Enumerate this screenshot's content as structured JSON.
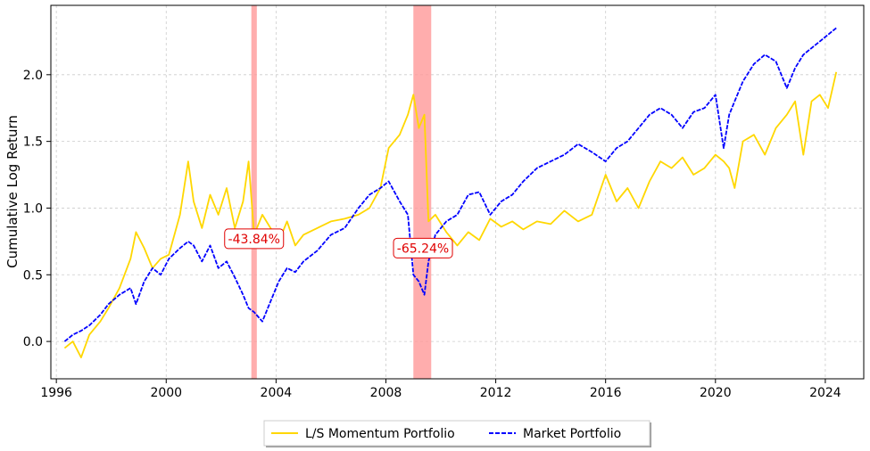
{
  "chart_data": {
    "type": "line",
    "title": "",
    "xlabel": "",
    "ylabel": "Cumulative Log Return",
    "xlim": [
      1995.8,
      2025.4
    ],
    "ylim": [
      -0.28,
      2.52
    ],
    "x_ticks": [
      1996,
      2000,
      2004,
      2008,
      2012,
      2016,
      2020,
      2024
    ],
    "x_tick_labels": [
      "1996",
      "2000",
      "2004",
      "2008",
      "2012",
      "2016",
      "2020",
      "2024"
    ],
    "y_ticks": [
      0.0,
      0.5,
      1.0,
      1.5,
      2.0
    ],
    "y_tick_labels": [
      "0.0",
      "0.5",
      "1.0",
      "1.5",
      "2.0"
    ],
    "grid": true,
    "legend_position": "bottom-center",
    "series": [
      {
        "name": "L/S Momentum Portfolio",
        "color": "#FFD700",
        "style": "solid",
        "points": [
          [
            1996.3,
            -0.05
          ],
          [
            1996.6,
            0.0
          ],
          [
            1996.9,
            -0.12
          ],
          [
            1997.2,
            0.05
          ],
          [
            1997.6,
            0.15
          ],
          [
            1997.9,
            0.25
          ],
          [
            1998.3,
            0.4
          ],
          [
            1998.7,
            0.62
          ],
          [
            1998.9,
            0.82
          ],
          [
            1999.2,
            0.7
          ],
          [
            1999.5,
            0.55
          ],
          [
            1999.8,
            0.62
          ],
          [
            2000.1,
            0.65
          ],
          [
            2000.5,
            0.95
          ],
          [
            2000.8,
            1.35
          ],
          [
            2001.0,
            1.05
          ],
          [
            2001.3,
            0.85
          ],
          [
            2001.6,
            1.1
          ],
          [
            2001.9,
            0.95
          ],
          [
            2002.2,
            1.15
          ],
          [
            2002.5,
            0.85
          ],
          [
            2002.8,
            1.05
          ],
          [
            2003.0,
            1.35
          ],
          [
            2003.2,
            0.8
          ],
          [
            2003.5,
            0.95
          ],
          [
            2003.8,
            0.85
          ],
          [
            2004.1,
            0.75
          ],
          [
            2004.4,
            0.9
          ],
          [
            2004.7,
            0.72
          ],
          [
            2005.0,
            0.8
          ],
          [
            2005.5,
            0.85
          ],
          [
            2006.0,
            0.9
          ],
          [
            2006.5,
            0.92
          ],
          [
            2007.0,
            0.95
          ],
          [
            2007.4,
            1.0
          ],
          [
            2007.8,
            1.15
          ],
          [
            2008.1,
            1.45
          ],
          [
            2008.5,
            1.55
          ],
          [
            2008.8,
            1.7
          ],
          [
            2009.0,
            1.85
          ],
          [
            2009.2,
            1.6
          ],
          [
            2009.4,
            1.7
          ],
          [
            2009.55,
            0.9
          ],
          [
            2009.8,
            0.95
          ],
          [
            2010.2,
            0.82
          ],
          [
            2010.6,
            0.72
          ],
          [
            2011.0,
            0.82
          ],
          [
            2011.4,
            0.76
          ],
          [
            2011.8,
            0.92
          ],
          [
            2012.2,
            0.86
          ],
          [
            2012.6,
            0.9
          ],
          [
            2013.0,
            0.84
          ],
          [
            2013.5,
            0.9
          ],
          [
            2014.0,
            0.88
          ],
          [
            2014.5,
            0.98
          ],
          [
            2015.0,
            0.9
          ],
          [
            2015.5,
            0.95
          ],
          [
            2016.0,
            1.25
          ],
          [
            2016.4,
            1.05
          ],
          [
            2016.8,
            1.15
          ],
          [
            2017.2,
            1.0
          ],
          [
            2017.6,
            1.2
          ],
          [
            2018.0,
            1.35
          ],
          [
            2018.4,
            1.3
          ],
          [
            2018.8,
            1.38
          ],
          [
            2019.2,
            1.25
          ],
          [
            2019.6,
            1.3
          ],
          [
            2020.0,
            1.4
          ],
          [
            2020.3,
            1.35
          ],
          [
            2020.5,
            1.3
          ],
          [
            2020.7,
            1.15
          ],
          [
            2021.0,
            1.5
          ],
          [
            2021.4,
            1.55
          ],
          [
            2021.8,
            1.4
          ],
          [
            2022.2,
            1.6
          ],
          [
            2022.6,
            1.7
          ],
          [
            2022.9,
            1.8
          ],
          [
            2023.2,
            1.4
          ],
          [
            2023.5,
            1.8
          ],
          [
            2023.8,
            1.85
          ],
          [
            2024.1,
            1.75
          ],
          [
            2024.4,
            2.02
          ]
        ]
      },
      {
        "name": "Market Portfolio",
        "color": "#0000FF",
        "style": "dashed",
        "points": [
          [
            1996.3,
            0.0
          ],
          [
            1996.6,
            0.05
          ],
          [
            1996.9,
            0.08
          ],
          [
            1997.2,
            0.12
          ],
          [
            1997.6,
            0.2
          ],
          [
            1997.9,
            0.28
          ],
          [
            1998.3,
            0.35
          ],
          [
            1998.7,
            0.4
          ],
          [
            1998.9,
            0.28
          ],
          [
            1999.2,
            0.45
          ],
          [
            1999.5,
            0.55
          ],
          [
            1999.8,
            0.5
          ],
          [
            2000.1,
            0.62
          ],
          [
            2000.5,
            0.7
          ],
          [
            2000.8,
            0.75
          ],
          [
            2001.0,
            0.72
          ],
          [
            2001.3,
            0.6
          ],
          [
            2001.6,
            0.72
          ],
          [
            2001.9,
            0.55
          ],
          [
            2002.2,
            0.6
          ],
          [
            2002.5,
            0.48
          ],
          [
            2002.8,
            0.35
          ],
          [
            2003.0,
            0.25
          ],
          [
            2003.2,
            0.22
          ],
          [
            2003.5,
            0.15
          ],
          [
            2003.8,
            0.3
          ],
          [
            2004.1,
            0.45
          ],
          [
            2004.4,
            0.55
          ],
          [
            2004.7,
            0.52
          ],
          [
            2005.0,
            0.6
          ],
          [
            2005.5,
            0.68
          ],
          [
            2006.0,
            0.8
          ],
          [
            2006.5,
            0.85
          ],
          [
            2007.0,
            1.0
          ],
          [
            2007.4,
            1.1
          ],
          [
            2007.8,
            1.15
          ],
          [
            2008.1,
            1.2
          ],
          [
            2008.5,
            1.05
          ],
          [
            2008.8,
            0.95
          ],
          [
            2009.0,
            0.5
          ],
          [
            2009.2,
            0.45
          ],
          [
            2009.4,
            0.35
          ],
          [
            2009.55,
            0.6
          ],
          [
            2009.8,
            0.8
          ],
          [
            2010.2,
            0.9
          ],
          [
            2010.6,
            0.95
          ],
          [
            2011.0,
            1.1
          ],
          [
            2011.4,
            1.12
          ],
          [
            2011.8,
            0.95
          ],
          [
            2012.2,
            1.05
          ],
          [
            2012.6,
            1.1
          ],
          [
            2013.0,
            1.2
          ],
          [
            2013.5,
            1.3
          ],
          [
            2014.0,
            1.35
          ],
          [
            2014.5,
            1.4
          ],
          [
            2015.0,
            1.48
          ],
          [
            2015.5,
            1.42
          ],
          [
            2016.0,
            1.35
          ],
          [
            2016.4,
            1.45
          ],
          [
            2016.8,
            1.5
          ],
          [
            2017.2,
            1.6
          ],
          [
            2017.6,
            1.7
          ],
          [
            2018.0,
            1.75
          ],
          [
            2018.4,
            1.7
          ],
          [
            2018.8,
            1.6
          ],
          [
            2019.2,
            1.72
          ],
          [
            2019.6,
            1.75
          ],
          [
            2020.0,
            1.85
          ],
          [
            2020.3,
            1.45
          ],
          [
            2020.5,
            1.7
          ],
          [
            2020.7,
            1.8
          ],
          [
            2021.0,
            1.95
          ],
          [
            2021.4,
            2.08
          ],
          [
            2021.8,
            2.15
          ],
          [
            2022.2,
            2.1
          ],
          [
            2022.6,
            1.9
          ],
          [
            2022.9,
            2.05
          ],
          [
            2023.2,
            2.15
          ],
          [
            2023.5,
            2.2
          ],
          [
            2023.8,
            2.25
          ],
          [
            2024.1,
            2.3
          ],
          [
            2024.4,
            2.35
          ]
        ]
      }
    ],
    "shaded_regions": [
      {
        "x_start": 2003.1,
        "x_end": 2003.3,
        "color": "#FF9999"
      },
      {
        "x_start": 2009.0,
        "x_end": 2009.65,
        "color": "#FF9999"
      }
    ],
    "annotations": [
      {
        "text": "-43.84%",
        "x": 2003.2,
        "y": 0.77
      },
      {
        "text": "-65.24%",
        "x": 2009.35,
        "y": 0.7
      }
    ]
  }
}
